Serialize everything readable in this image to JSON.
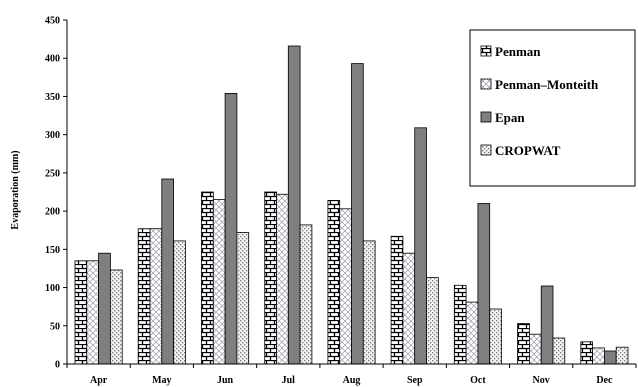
{
  "chart_data": {
    "type": "bar",
    "title": "",
    "xlabel": "",
    "ylabel": "Evaporation (mm)",
    "ylim": [
      0,
      450
    ],
    "yticks": [
      0,
      50,
      100,
      150,
      200,
      250,
      300,
      350,
      400,
      450
    ],
    "categories": [
      "Apr",
      "May",
      "Jun",
      "Jul",
      "Aug",
      "Sep",
      "Oct",
      "Nov",
      "Dec"
    ],
    "grid": false,
    "legend_position": "top-right",
    "series": [
      {
        "name": "Penman",
        "pattern": "brick",
        "color": "#000000",
        "values": [
          135,
          177,
          225,
          225,
          214,
          167,
          103,
          53,
          29
        ]
      },
      {
        "name": "Penman–Monteith",
        "pattern": "diagonal-cross",
        "color": "#9a9aaa",
        "values": [
          135,
          177,
          215,
          222,
          203,
          145,
          81,
          39,
          21
        ]
      },
      {
        "name": "Epan",
        "pattern": "solid",
        "color": "#7f7f7f",
        "values": [
          145,
          242,
          354,
          416,
          393,
          309,
          210,
          102,
          17
        ]
      },
      {
        "name": "CROPWAT",
        "pattern": "dots",
        "color": "#b0b0b0",
        "values": [
          123,
          161,
          172,
          182,
          161,
          113,
          72,
          34,
          22
        ]
      }
    ]
  }
}
